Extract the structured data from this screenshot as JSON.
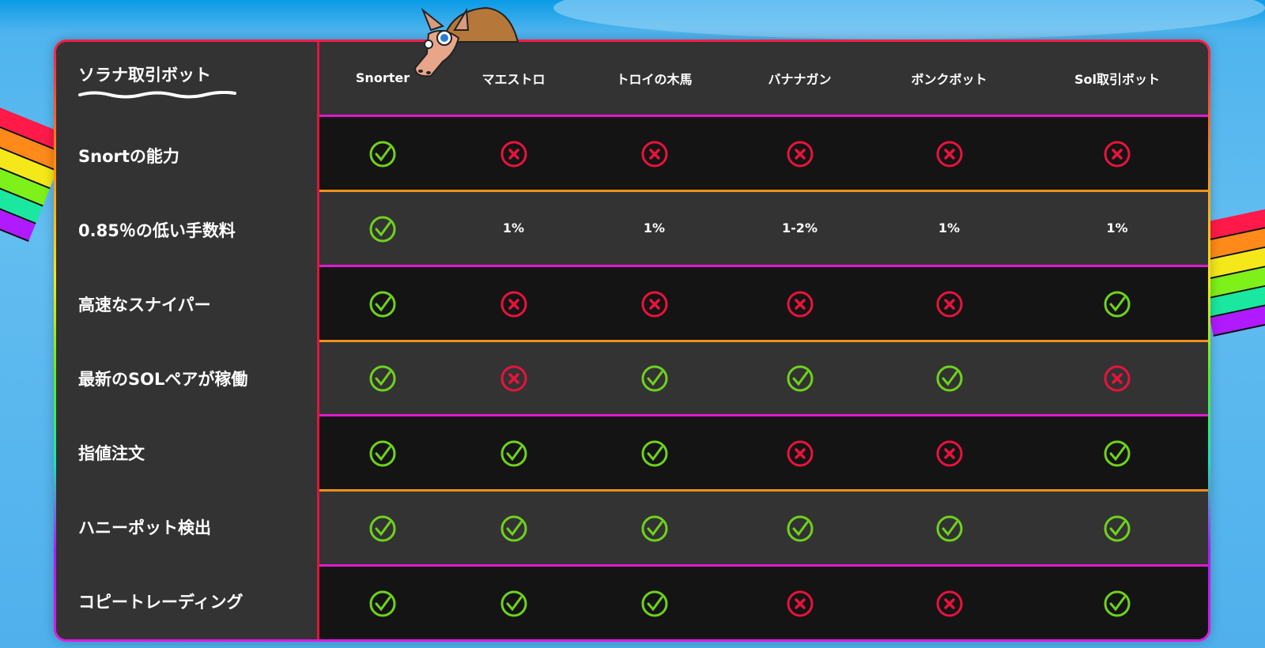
{
  "colors": {
    "yes": "#6fd21c",
    "no": "#e8133c",
    "accent_magenta": "#e01ad0",
    "accent_orange": "#f0901a"
  },
  "title": "ソラナ取引ボット",
  "columns": [
    "Snorter",
    "マエストロ",
    "トロイの木馬",
    "バナナガン",
    "ボンクボット",
    "Sol取引ボット"
  ],
  "rows": [
    {
      "label": "Snortの能力",
      "values": [
        "check",
        "cross",
        "cross",
        "cross",
        "cross",
        "cross"
      ]
    },
    {
      "label": "0.85％の低い手数料",
      "values": [
        "check",
        "1%",
        "1%",
        "1-2%",
        "1%",
        "1%"
      ]
    },
    {
      "label": "高速なスナイパー",
      "values": [
        "check",
        "cross",
        "cross",
        "cross",
        "cross",
        "check"
      ]
    },
    {
      "label": "最新のSOLペアが稼働",
      "values": [
        "check",
        "cross",
        "check",
        "check",
        "check",
        "cross"
      ]
    },
    {
      "label": "指値注文",
      "values": [
        "check",
        "check",
        "check",
        "cross",
        "cross",
        "check"
      ]
    },
    {
      "label": "ハニーポット検出",
      "values": [
        "check",
        "check",
        "check",
        "check",
        "check",
        "check"
      ]
    },
    {
      "label": "コピートレーディング",
      "values": [
        "check",
        "check",
        "check",
        "cross",
        "cross",
        "check"
      ]
    }
  ]
}
